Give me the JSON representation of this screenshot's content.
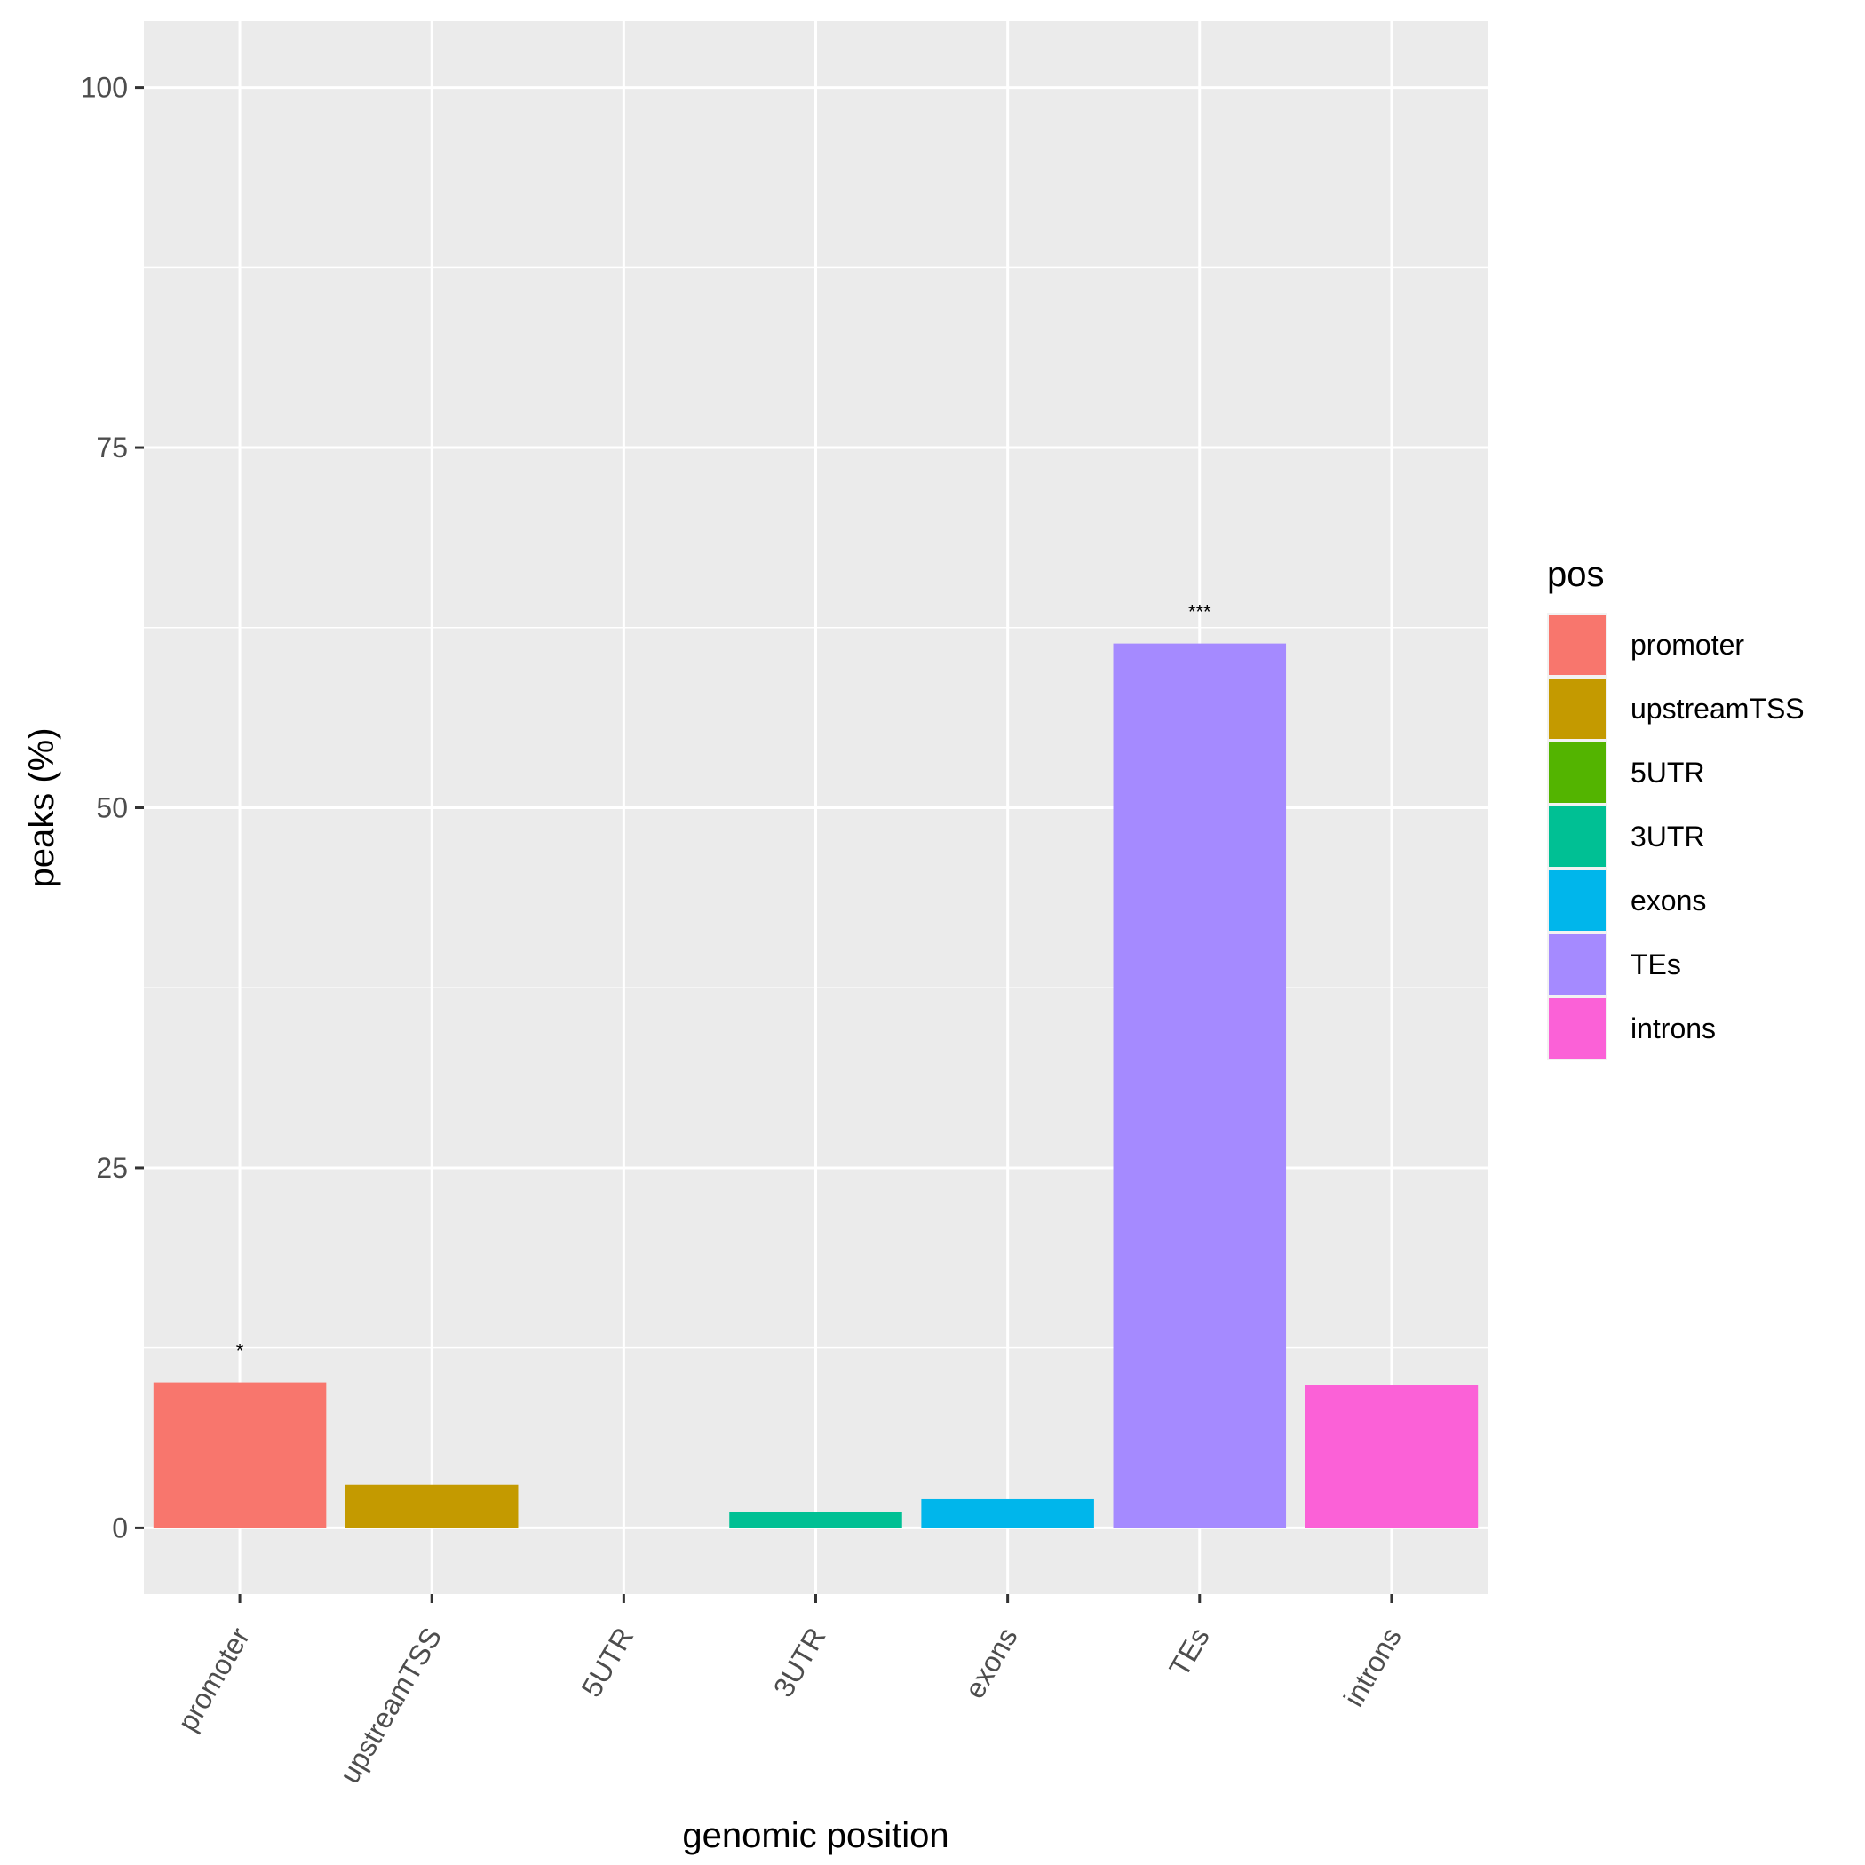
{
  "chart_data": {
    "type": "bar",
    "categories": [
      "promoter",
      "upstreamTSS",
      "5UTR",
      "3UTR",
      "exons",
      "TEs",
      "introns"
    ],
    "values": [
      10.1,
      3.0,
      0.0,
      1.1,
      2.0,
      61.4,
      9.9
    ],
    "colors": [
      "#F8766D",
      "#C49A00",
      "#53B400",
      "#00C094",
      "#00B6EB",
      "#A58AFF",
      "#FB61D7"
    ],
    "annotations": [
      "*",
      "",
      "",
      "",
      "",
      "***",
      ""
    ],
    "title": "",
    "xlabel": "genomic position",
    "ylabel": "peaks (%)",
    "ylim": [
      -4.6,
      104.6
    ],
    "yticks": [
      0,
      25,
      50,
      75,
      100
    ],
    "grid": true,
    "panel_background": "#EBEBEB",
    "legend": {
      "title": "pos",
      "position": "right",
      "items": [
        "promoter",
        "upstreamTSS",
        "5UTR",
        "3UTR",
        "exons",
        "TEs",
        "introns"
      ]
    }
  }
}
